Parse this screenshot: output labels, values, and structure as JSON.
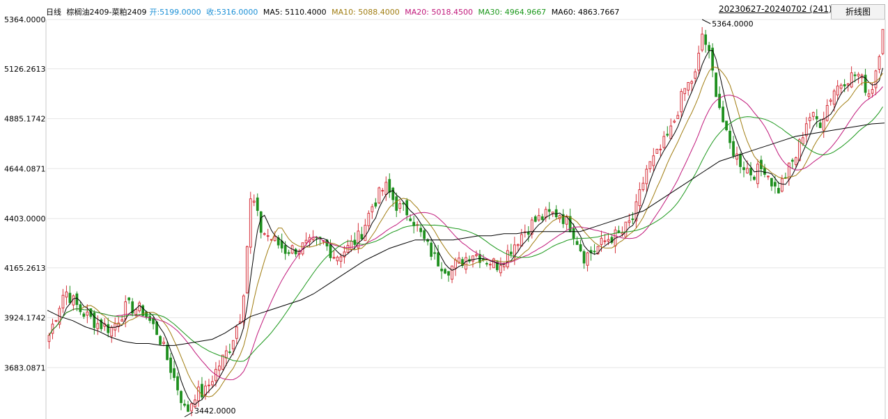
{
  "header": {
    "period": "日线",
    "symbol": "棕榈油2409-菜粕2409",
    "open": "开:5199.0000",
    "close": "收:5316.0000",
    "ma5": "MA5: 5110.4000",
    "ma10": "MA10: 5088.4000",
    "ma20": "MA20: 5018.4500",
    "ma30": "MA30: 4964.9667",
    "ma60": "MA60: 4863.7667",
    "date_range": "20230627-20240702 (241)",
    "toggle_button": "折线图"
  },
  "colors": {
    "up": "#d6303a",
    "down": "#1e8f1e",
    "open_text": "#1a8fd6",
    "ma5": "#000000",
    "ma10": "#a07c10",
    "ma20": "#c0177a",
    "ma30": "#199719",
    "ma60": "#000000",
    "grid": "#e6e6e6"
  },
  "chart_data": {
    "type": "candlestick",
    "title": "棕榈油2409-菜粕2409",
    "period": "daily",
    "date_range": "20230627-20240702",
    "bar_count": 241,
    "y_ticks": [
      "5364.0000",
      "5126.2613",
      "4885.1742",
      "4644.0871",
      "4403.0000",
      "4165.2613",
      "3924.1742",
      "3683.0871"
    ],
    "ylim": [
      3442,
      5364
    ],
    "annotations": [
      {
        "label": "5364.0000",
        "type": "period_high",
        "value": 5364
      },
      {
        "label": "3442.0000",
        "type": "period_low",
        "value": 3442
      }
    ],
    "summary": {
      "open": 5199,
      "close": 5316
    },
    "moving_averages": [
      {
        "name": "MA5",
        "value": 5110.4
      },
      {
        "name": "MA10",
        "value": 5088.4
      },
      {
        "name": "MA20",
        "value": 5018.45
      },
      {
        "name": "MA30",
        "value": 4964.9667
      },
      {
        "name": "MA60",
        "value": 4863.7667
      }
    ],
    "ma60_path": [
      3960,
      3930,
      3910,
      3880,
      3860,
      3830,
      3810,
      3800,
      3800,
      3790,
      3790,
      3800,
      3810,
      3820,
      3850,
      3890,
      3930,
      3950,
      3970,
      3990,
      4010,
      4040,
      4080,
      4120,
      4160,
      4200,
      4230,
      4260,
      4280,
      4300,
      4300,
      4300,
      4300,
      4310,
      4320,
      4320,
      4330,
      4330,
      4340,
      4340,
      4340,
      4340,
      4340,
      4360,
      4380,
      4400,
      4420,
      4440,
      4480,
      4520,
      4560,
      4600,
      4640,
      4680,
      4700,
      4720,
      4740,
      4760,
      4780,
      4800,
      4810,
      4820,
      4830,
      4840,
      4850,
      4860,
      4864
    ]
  }
}
